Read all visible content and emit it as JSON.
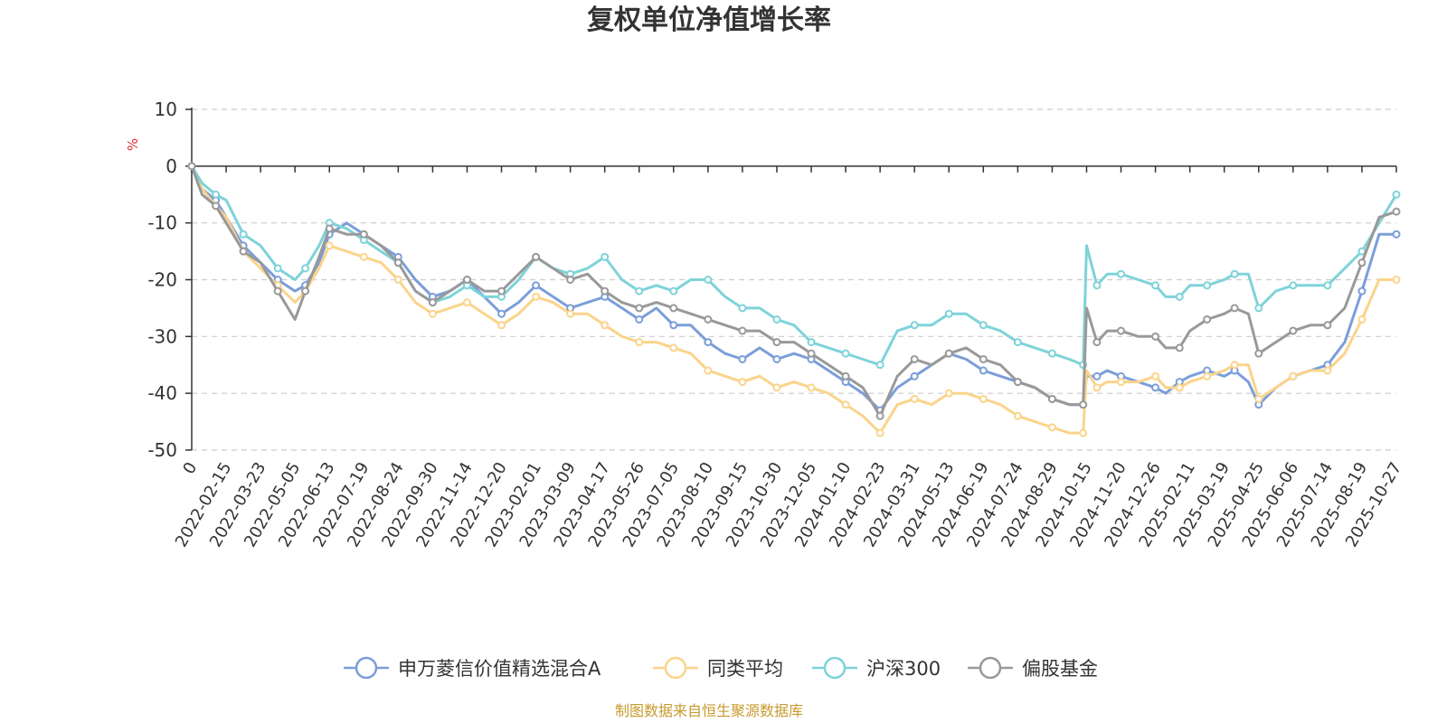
{
  "chart_data": {
    "type": "line",
    "title": "复权单位净值增长率",
    "ylabel": "%",
    "ylim": [
      -50,
      10
    ],
    "yticks": [
      10,
      0,
      -10,
      -20,
      -30,
      -40,
      -50
    ],
    "grid": true,
    "legend_position": "bottom-center",
    "x_tick_labels": [
      "0",
      "2022-02-15",
      "2022-03-23",
      "2022-05-05",
      "2022-06-13",
      "2022-07-19",
      "2022-08-24",
      "2022-09-30",
      "2022-11-14",
      "2022-12-20",
      "2023-02-01",
      "2023-03-09",
      "2023-04-17",
      "2023-05-26",
      "2023-07-05",
      "2023-08-10",
      "2023-09-15",
      "2023-10-30",
      "2023-12-05",
      "2024-01-10",
      "2024-02-23",
      "2024-03-31",
      "2024-05-13",
      "2024-06-19",
      "2024-07-24",
      "2024-08-29",
      "2024-10-15",
      "2024-11-20",
      "2024-12-26",
      "2025-02-11",
      "2025-03-19",
      "2025-04-25",
      "2025-06-06",
      "2025-07-14",
      "2025-08-19",
      "2025-10-27"
    ],
    "x_tick_positions": [
      0,
      1,
      2,
      3,
      4,
      5,
      6,
      7,
      8,
      9,
      10,
      11,
      12,
      13,
      14,
      15,
      16,
      17,
      18,
      19,
      20,
      21,
      22,
      23,
      24,
      25,
      26,
      27,
      28,
      29,
      30,
      31,
      32,
      33,
      34,
      35
    ],
    "x_range": [
      0,
      35
    ],
    "series": [
      {
        "name": "申万菱信价值精选混合A",
        "color": "#7b9ed9",
        "x": [
          0,
          0.3,
          0.7,
          1,
          1.5,
          2,
          2.5,
          3,
          3.3,
          3.7,
          4,
          4.5,
          5,
          5.5,
          6,
          6.5,
          7,
          7.5,
          8,
          8.5,
          9,
          9.5,
          10,
          10.5,
          11,
          11.5,
          12,
          12.5,
          13,
          13.5,
          14,
          14.5,
          15,
          15.5,
          16,
          16.5,
          17,
          17.5,
          18,
          18.5,
          19,
          19.5,
          20,
          20.5,
          21,
          21.5,
          22,
          22.5,
          23,
          23.5,
          24,
          24.5,
          25,
          25.5,
          25.9,
          26,
          26.3,
          26.6,
          27,
          27.5,
          28,
          28.3,
          28.7,
          29,
          29.5,
          30,
          30.3,
          30.7,
          31,
          31.5,
          32,
          32.5,
          33,
          33.5,
          34,
          34.5,
          35
        ],
        "y": [
          0,
          -4,
          -6,
          -9,
          -14,
          -17,
          -20,
          -22,
          -21,
          -17,
          -12,
          -10,
          -12,
          -14,
          -16,
          -20,
          -23,
          -22,
          -20,
          -23,
          -26,
          -24,
          -21,
          -23,
          -25,
          -24,
          -23,
          -25,
          -27,
          -25,
          -28,
          -28,
          -31,
          -33,
          -34,
          -32,
          -34,
          -33,
          -34,
          -36,
          -38,
          -40,
          -43,
          -39,
          -37,
          -35,
          -33,
          -34,
          -36,
          -37,
          -38,
          -39,
          -41,
          -42,
          -42,
          -37,
          -37,
          -36,
          -37,
          -38,
          -39,
          -40,
          -38,
          -37,
          -36,
          -37,
          -36,
          -38,
          -42,
          -39,
          -37,
          -36,
          -35,
          -31,
          -22,
          -12,
          -12
        ]
      },
      {
        "name": "同类平均",
        "color": "#fad48b",
        "x": [
          0,
          0.3,
          0.7,
          1,
          1.5,
          2,
          2.5,
          3,
          3.3,
          3.7,
          4,
          4.5,
          5,
          5.5,
          6,
          6.5,
          7,
          7.5,
          8,
          8.5,
          9,
          9.5,
          10,
          10.5,
          11,
          11.5,
          12,
          12.5,
          13,
          13.5,
          14,
          14.5,
          15,
          15.5,
          16,
          16.5,
          17,
          17.5,
          18,
          18.5,
          19,
          19.5,
          20,
          20.5,
          21,
          21.5,
          22,
          22.5,
          23,
          23.5,
          24,
          24.5,
          25,
          25.5,
          25.9,
          26,
          26.3,
          26.6,
          27,
          27.5,
          28,
          28.3,
          28.7,
          29,
          29.5,
          30,
          30.3,
          30.7,
          31,
          31.5,
          32,
          32.5,
          33,
          33.5,
          34,
          34.5,
          35
        ],
        "y": [
          0,
          -4,
          -7,
          -9,
          -15,
          -18,
          -21,
          -24,
          -22,
          -18,
          -14,
          -15,
          -16,
          -17,
          -20,
          -24,
          -26,
          -25,
          -24,
          -26,
          -28,
          -26,
          -23,
          -24,
          -26,
          -26,
          -28,
          -30,
          -31,
          -31,
          -32,
          -33,
          -36,
          -37,
          -38,
          -37,
          -39,
          -38,
          -39,
          -40,
          -42,
          -44,
          -47,
          -42,
          -41,
          -42,
          -40,
          -40,
          -41,
          -42,
          -44,
          -45,
          -46,
          -47,
          -47,
          -36,
          -39,
          -38,
          -38,
          -38,
          -37,
          -39,
          -39,
          -38,
          -37,
          -36,
          -35,
          -35,
          -41,
          -39,
          -37,
          -36,
          -36,
          -33,
          -27,
          -20,
          -20
        ]
      },
      {
        "name": "沪深300",
        "color": "#7ed3d9",
        "x": [
          0,
          0.3,
          0.7,
          1,
          1.5,
          2,
          2.5,
          3,
          3.3,
          3.7,
          4,
          4.5,
          5,
          5.5,
          6,
          6.5,
          7,
          7.5,
          8,
          8.5,
          9,
          9.5,
          10,
          10.5,
          11,
          11.5,
          12,
          12.5,
          13,
          13.5,
          14,
          14.5,
          15,
          15.5,
          16,
          16.5,
          17,
          17.5,
          18,
          18.5,
          19,
          19.5,
          20,
          20.5,
          21,
          21.5,
          22,
          22.5,
          23,
          23.5,
          24,
          24.5,
          25,
          25.5,
          25.9,
          26,
          26.3,
          26.6,
          27,
          27.5,
          28,
          28.3,
          28.7,
          29,
          29.5,
          30,
          30.3,
          30.7,
          31,
          31.5,
          32,
          32.5,
          33,
          33.5,
          34,
          34.5,
          35
        ],
        "y": [
          0,
          -3,
          -5,
          -6,
          -12,
          -14,
          -18,
          -20,
          -18,
          -14,
          -10,
          -11,
          -13,
          -15,
          -17,
          -22,
          -24,
          -23,
          -21,
          -23,
          -23,
          -20,
          -16,
          -18,
          -19,
          -18,
          -16,
          -20,
          -22,
          -21,
          -22,
          -20,
          -20,
          -23,
          -25,
          -25,
          -27,
          -28,
          -31,
          -32,
          -33,
          -34,
          -35,
          -29,
          -28,
          -28,
          -26,
          -26,
          -28,
          -29,
          -31,
          -32,
          -33,
          -34,
          -35,
          -14,
          -21,
          -19,
          -19,
          -20,
          -21,
          -23,
          -23,
          -21,
          -21,
          -20,
          -19,
          -19,
          -25,
          -22,
          -21,
          -21,
          -21,
          -18,
          -15,
          -10,
          -5
        ]
      },
      {
        "name": "偏股基金",
        "color": "#999999",
        "x": [
          0,
          0.3,
          0.7,
          1,
          1.5,
          2,
          2.5,
          3,
          3.3,
          3.7,
          4,
          4.5,
          5,
          5.5,
          6,
          6.5,
          7,
          7.5,
          8,
          8.5,
          9,
          9.5,
          10,
          10.5,
          11,
          11.5,
          12,
          12.5,
          13,
          13.5,
          14,
          14.5,
          15,
          15.5,
          16,
          16.5,
          17,
          17.5,
          18,
          18.5,
          19,
          19.5,
          20,
          20.5,
          21,
          21.5,
          22,
          22.5,
          23,
          23.5,
          24,
          24.5,
          25,
          25.5,
          25.9,
          26,
          26.3,
          26.6,
          27,
          27.5,
          28,
          28.3,
          28.7,
          29,
          29.5,
          30,
          30.3,
          30.7,
          31,
          31.5,
          32,
          32.5,
          33,
          33.5,
          34,
          34.5,
          35
        ],
        "y": [
          0,
          -5,
          -7,
          -10,
          -15,
          -17,
          -22,
          -27,
          -22,
          -16,
          -11,
          -12,
          -12,
          -14,
          -17,
          -22,
          -24,
          -22,
          -20,
          -22,
          -22,
          -19,
          -16,
          -18,
          -20,
          -19,
          -22,
          -24,
          -25,
          -24,
          -25,
          -26,
          -27,
          -28,
          -29,
          -29,
          -31,
          -31,
          -33,
          -35,
          -37,
          -39,
          -44,
          -37,
          -34,
          -35,
          -33,
          -32,
          -34,
          -35,
          -38,
          -39,
          -41,
          -42,
          -42,
          -25,
          -31,
          -29,
          -29,
          -30,
          -30,
          -32,
          -32,
          -29,
          -27,
          -26,
          -25,
          -26,
          -33,
          -31,
          -29,
          -28,
          -28,
          -25,
          -17,
          -9,
          -8
        ]
      }
    ]
  },
  "source_note": "制图数据来自恒生聚源数据库"
}
